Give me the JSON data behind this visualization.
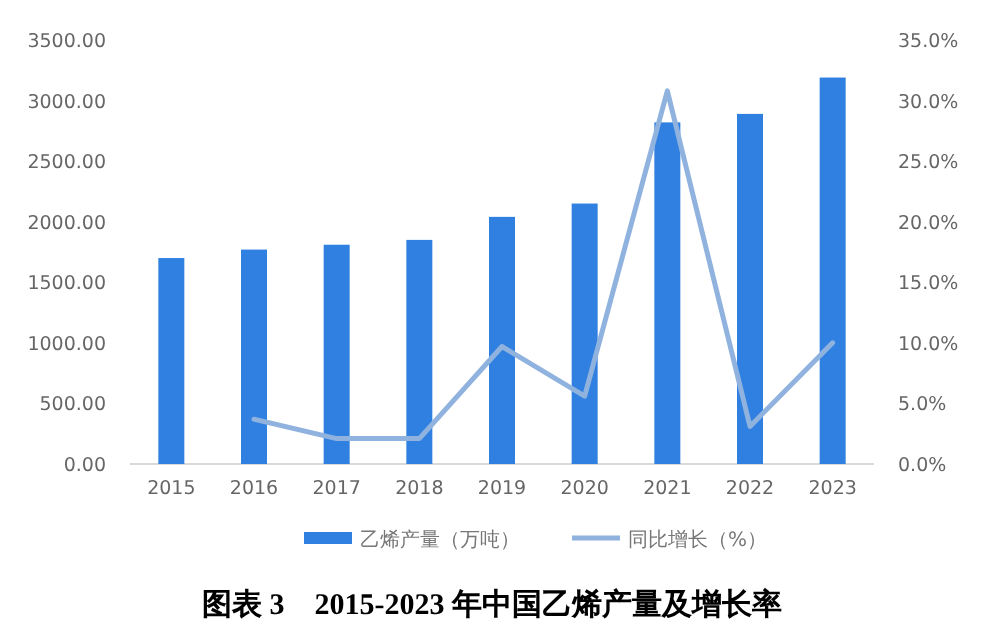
{
  "chart_data": {
    "type": "bar",
    "title": "图表 3    2015-2023 年中国乙烯产量及增长率",
    "categories": [
      "2015",
      "2016",
      "2017",
      "2018",
      "2019",
      "2020",
      "2021",
      "2022",
      "2023"
    ],
    "series": [
      {
        "name": "乙烯产量（万吨）",
        "color": "#2f80e0",
        "values": [
          1700,
          1770,
          1810,
          1850,
          2040,
          2150,
          2820,
          2890,
          3190
        ]
      },
      {
        "name": "同比增长（%）",
        "type": "line",
        "axis": "y2",
        "color": "#8fb2de",
        "values": [
          null,
          3.7,
          2.1,
          2.1,
          9.7,
          5.6,
          30.8,
          3.1,
          10.0
        ]
      }
    ],
    "ylim": [
      0,
      3500
    ],
    "yticks": [
      {
        "value": 0,
        "label": "0.00"
      },
      {
        "value": 500,
        "label": "500.00"
      },
      {
        "value": 1000,
        "label": "1000.00"
      },
      {
        "value": 1500,
        "label": "1500.00"
      },
      {
        "value": 2000,
        "label": "2000.00"
      },
      {
        "value": 2500,
        "label": "2500.00"
      },
      {
        "value": 3000,
        "label": "3000.00"
      },
      {
        "value": 3500,
        "label": "3500.00"
      }
    ],
    "y2lim": [
      0,
      35
    ],
    "y2ticks": [
      {
        "value": 0,
        "label": "0.0%"
      },
      {
        "value": 5,
        "label": "5.0%"
      },
      {
        "value": 10,
        "label": "10.0%"
      },
      {
        "value": 15,
        "label": "15.0%"
      },
      {
        "value": 20,
        "label": "20.0%"
      },
      {
        "value": 25,
        "label": "25.0%"
      },
      {
        "value": 30,
        "label": "30.0%"
      },
      {
        "value": 35,
        "label": "35.0%"
      }
    ],
    "legend": "bottom"
  }
}
